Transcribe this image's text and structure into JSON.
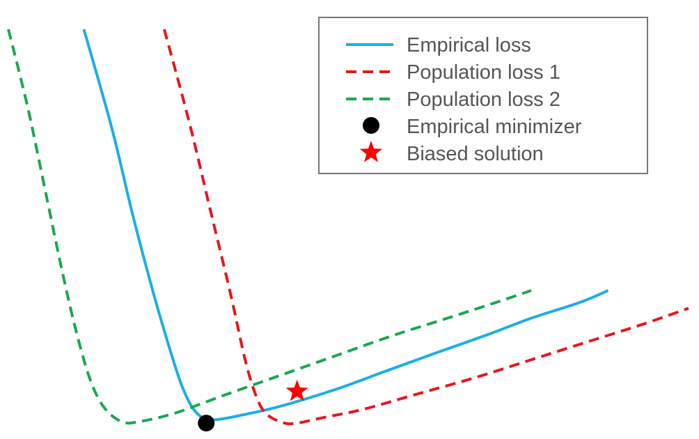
{
  "chart_data": {
    "type": "line",
    "title": "",
    "xlabel": "",
    "ylabel": "",
    "xlim": [
      0,
      100
    ],
    "ylim": [
      0,
      100
    ],
    "grid": false,
    "legend_position": "top-right",
    "series": [
      {
        "name": "Empirical loss",
        "color": "#1aaee8",
        "style": "solid",
        "points": [
          [
            12,
            100
          ],
          [
            16,
            75
          ],
          [
            19,
            53
          ],
          [
            22,
            33
          ],
          [
            24.5,
            18
          ],
          [
            26,
            10
          ],
          [
            27.5,
            4.5
          ],
          [
            29,
            1.8
          ],
          [
            30.5,
            1.3
          ],
          [
            34,
            2.3
          ],
          [
            40,
            4.7
          ],
          [
            48,
            9
          ],
          [
            55,
            13.5
          ],
          [
            62,
            18
          ],
          [
            70,
            23
          ],
          [
            76,
            27
          ],
          [
            83,
            31
          ],
          [
            87,
            34
          ]
        ]
      },
      {
        "name": "Population loss 1",
        "color": "#e8161b",
        "style": "dashed",
        "points": [
          [
            23.5,
            100
          ],
          [
            27,
            77
          ],
          [
            30,
            55
          ],
          [
            33,
            33
          ],
          [
            35,
            17
          ],
          [
            36.5,
            8
          ],
          [
            38,
            3
          ],
          [
            40.5,
            0.6
          ],
          [
            42.5,
            0.5
          ],
          [
            46,
            1.8
          ],
          [
            52,
            4
          ],
          [
            60,
            8
          ],
          [
            68,
            12
          ],
          [
            76,
            16.5
          ],
          [
            84,
            21
          ],
          [
            92,
            25.5
          ],
          [
            98.5,
            29.5
          ]
        ]
      },
      {
        "name": "Population loss 2",
        "color": "#1aa84f",
        "style": "dashed",
        "points": [
          [
            1.2,
            100
          ],
          [
            4,
            80
          ],
          [
            6.5,
            59
          ],
          [
            9,
            38
          ],
          [
            11,
            23
          ],
          [
            13,
            11
          ],
          [
            15,
            4.2
          ],
          [
            17.5,
            0.8
          ],
          [
            20,
            0.9
          ],
          [
            25,
            3
          ],
          [
            32,
            7.5
          ],
          [
            40,
            12.5
          ],
          [
            48,
            17.5
          ],
          [
            56,
            22.5
          ],
          [
            64,
            27
          ],
          [
            71,
            31
          ],
          [
            76,
            34
          ]
        ]
      }
    ],
    "markers": [
      {
        "name": "Empirical minimizer",
        "shape": "circle",
        "color": "#000000",
        "x": 29.5,
        "y": 0.5
      },
      {
        "name": "Biased solution",
        "shape": "star",
        "color": "#ff0000",
        "x": 42.5,
        "y": 8.5
      }
    ]
  }
}
